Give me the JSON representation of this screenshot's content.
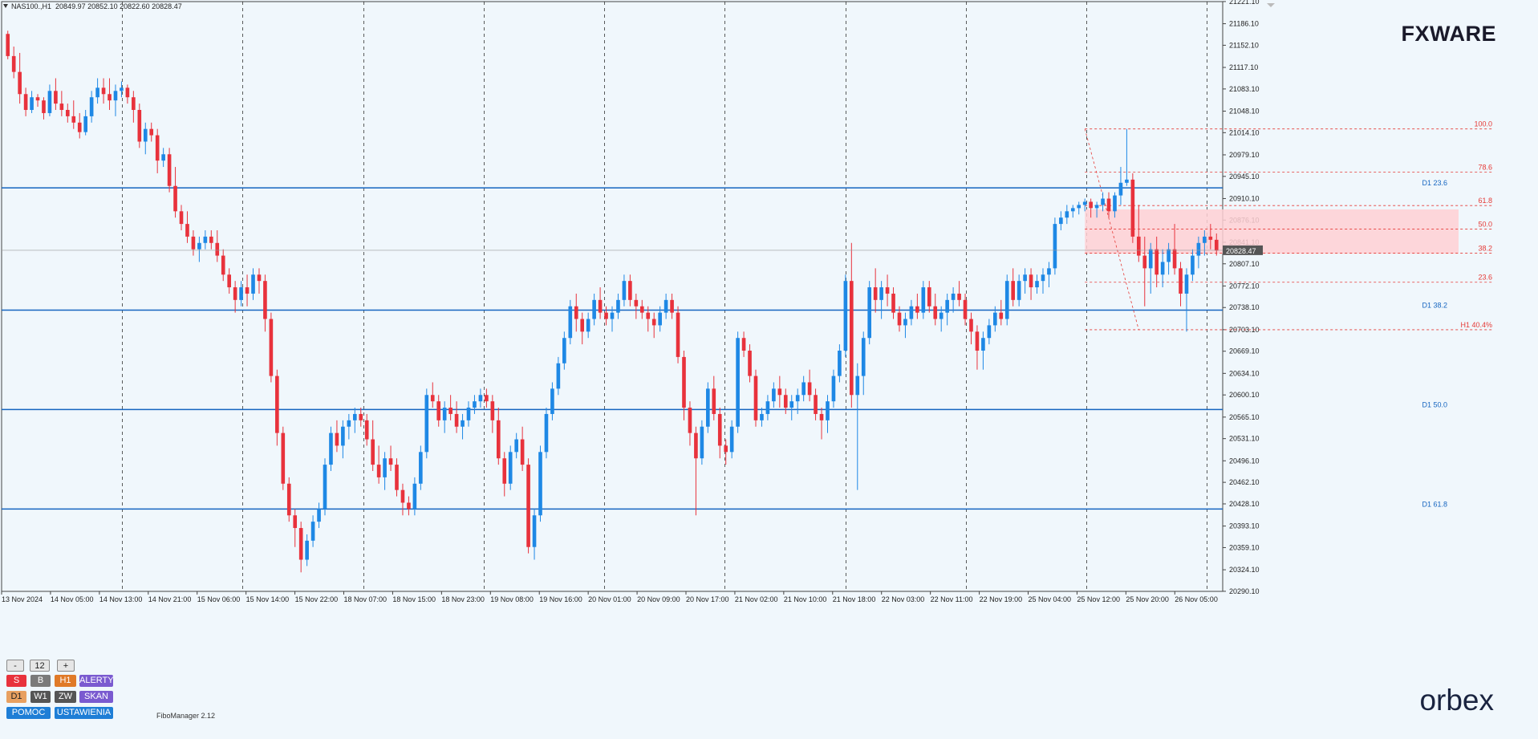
{
  "header": {
    "symbol": "NAS100.,H1",
    "ohlc": "20849.97 20852.10 20822.60 20828.47"
  },
  "brand": {
    "top_logo": "FXWARE",
    "bottom_logo": "orbex"
  },
  "indicator_label": "FiboManager 2.12",
  "panel": {
    "minus": "-",
    "value": "12",
    "plus": "+",
    "s": "S",
    "b": "B",
    "h1": "H1",
    "alerty": "ALERTY",
    "d1": "D1",
    "w1": "W1",
    "zw": "ZW",
    "skan": "SKAN",
    "pomoc": "POMOC",
    "ustawienia": "USTAWIENIA"
  },
  "colors": {
    "bull": "#1e88e5",
    "bear": "#e8323c",
    "support": "#1565c0",
    "fib": "#e53935",
    "zone": "#ffd0d4",
    "background": "#f0f7fc"
  },
  "chart_data": {
    "type": "candlestick",
    "ylim": [
      20290,
      21221
    ],
    "y_ticks": [
      "21221.10",
      "21186.10",
      "21152.10",
      "21117.10",
      "21083.10",
      "21048.10",
      "21014.10",
      "20979.10",
      "20945.10",
      "20910.10",
      "20876.10",
      "20841.10",
      "20807.10",
      "20772.10",
      "20738.10",
      "20703.10",
      "20669.10",
      "20634.10",
      "20600.10",
      "20565.10",
      "20531.10",
      "20496.10",
      "20462.10",
      "20428.10",
      "20393.10",
      "20359.10",
      "20324.10",
      "20290.10"
    ],
    "x_ticks": [
      "13 Nov 2024",
      "14 Nov 05:00",
      "14 Nov 13:00",
      "14 Nov 21:00",
      "15 Nov 06:00",
      "15 Nov 14:00",
      "15 Nov 22:00",
      "18 Nov 07:00",
      "18 Nov 15:00",
      "18 Nov 23:00",
      "19 Nov 08:00",
      "19 Nov 16:00",
      "20 Nov 01:00",
      "20 Nov 09:00",
      "20 Nov 17:00",
      "21 Nov 02:00",
      "21 Nov 10:00",
      "21 Nov 18:00",
      "22 Nov 03:00",
      "22 Nov 11:00",
      "22 Nov 19:00",
      "25 Nov 04:00",
      "25 Nov 12:00",
      "25 Nov 20:00",
      "26 Nov 05:00"
    ],
    "current_price": "20828.47",
    "support_lines": [
      {
        "label": "D1 23.6",
        "price": 20927
      },
      {
        "label": "D1 38.2",
        "price": 20734
      },
      {
        "label": "D1 50.0",
        "price": 20577
      },
      {
        "label": "D1 61.8",
        "price": 20420
      }
    ],
    "fib_levels": [
      {
        "label": "100.0",
        "price": 21020
      },
      {
        "label": "78.6",
        "price": 20952
      },
      {
        "label": "61.8",
        "price": 20899
      },
      {
        "label": "50.0",
        "price": 20862
      },
      {
        "label": "38.2",
        "price": 20824
      },
      {
        "label": "23.6",
        "price": 20778
      },
      {
        "label": "H1 40.4%",
        "price": 20703
      }
    ],
    "zone": {
      "top": 20893,
      "bottom": 20823
    },
    "candles": [
      [
        21170,
        21175,
        21130,
        21135
      ],
      [
        21135,
        21150,
        21100,
        21110
      ],
      [
        21110,
        21140,
        21060,
        21075
      ],
      [
        21075,
        21085,
        21040,
        21050
      ],
      [
        21050,
        21080,
        21045,
        21070
      ],
      [
        21070,
        21075,
        21055,
        21065
      ],
      [
        21065,
        21070,
        21035,
        21045
      ],
      [
        21045,
        21090,
        21040,
        21080
      ],
      [
        21080,
        21100,
        21050,
        21060
      ],
      [
        21060,
        21080,
        21040,
        21050
      ],
      [
        21050,
        21060,
        21030,
        21040
      ],
      [
        21040,
        21065,
        21020,
        21030
      ],
      [
        21030,
        21045,
        21005,
        21015
      ],
      [
        21015,
        21050,
        21010,
        21040
      ],
      [
        21040,
        21080,
        21030,
        21070
      ],
      [
        21070,
        21100,
        21060,
        21085
      ],
      [
        21085,
        21100,
        21060,
        21075
      ],
      [
        21075,
        21100,
        21050,
        21065
      ],
      [
        21065,
        21090,
        21040,
        21080
      ],
      [
        21080,
        21095,
        21070,
        21085
      ],
      [
        21085,
        21090,
        21060,
        21070
      ],
      [
        21070,
        21080,
        21030,
        21050
      ],
      [
        21050,
        21060,
        20990,
        21000
      ],
      [
        21000,
        21030,
        20980,
        21020
      ],
      [
        21020,
        21030,
        21000,
        21010
      ],
      [
        21010,
        21020,
        20950,
        20970
      ],
      [
        20970,
        20990,
        20960,
        20980
      ],
      [
        20980,
        20990,
        20920,
        20930
      ],
      [
        20930,
        20960,
        20880,
        20890
      ],
      [
        20890,
        20900,
        20860,
        20870
      ],
      [
        20870,
        20890,
        20840,
        20850
      ],
      [
        20850,
        20860,
        20820,
        20830
      ],
      [
        20830,
        20850,
        20810,
        20840
      ],
      [
        20840,
        20860,
        20830,
        20850
      ],
      [
        20850,
        20860,
        20830,
        20840
      ],
      [
        20840,
        20860,
        20810,
        20820
      ],
      [
        20820,
        20830,
        20780,
        20790
      ],
      [
        20790,
        20800,
        20760,
        20770
      ],
      [
        20770,
        20780,
        20730,
        20750
      ],
      [
        20750,
        20780,
        20740,
        20770
      ],
      [
        20770,
        20790,
        20740,
        20760
      ],
      [
        20760,
        20800,
        20750,
        20790
      ],
      [
        20790,
        20800,
        20760,
        20780
      ],
      [
        20780,
        20790,
        20700,
        20720
      ],
      [
        20720,
        20730,
        20620,
        20630
      ],
      [
        20630,
        20640,
        20520,
        20540
      ],
      [
        20540,
        20550,
        20450,
        20460
      ],
      [
        20460,
        20470,
        20400,
        20410
      ],
      [
        20410,
        20420,
        20360,
        20390
      ],
      [
        20390,
        20400,
        20320,
        20340
      ],
      [
        20340,
        20380,
        20330,
        20370
      ],
      [
        20370,
        20410,
        20360,
        20400
      ],
      [
        20400,
        20430,
        20390,
        20420
      ],
      [
        20420,
        20500,
        20410,
        20490
      ],
      [
        20490,
        20550,
        20480,
        20540
      ],
      [
        20540,
        20560,
        20510,
        20520
      ],
      [
        20520,
        20560,
        20500,
        20550
      ],
      [
        20550,
        20570,
        20530,
        20560
      ],
      [
        20560,
        20580,
        20540,
        20570
      ],
      [
        20570,
        20580,
        20550,
        20560
      ],
      [
        20560,
        20570,
        20520,
        20530
      ],
      [
        20530,
        20560,
        20480,
        20490
      ],
      [
        20490,
        20520,
        20460,
        20470
      ],
      [
        20470,
        20510,
        20450,
        20500
      ],
      [
        20500,
        20520,
        20480,
        20490
      ],
      [
        20490,
        20500,
        20440,
        20450
      ],
      [
        20450,
        20460,
        20410,
        20430
      ],
      [
        20430,
        20440,
        20410,
        20420
      ],
      [
        20420,
        20470,
        20410,
        20460
      ],
      [
        20460,
        20520,
        20450,
        20510
      ],
      [
        20510,
        20610,
        20500,
        20600
      ],
      [
        20600,
        20620,
        20580,
        20590
      ],
      [
        20590,
        20600,
        20550,
        20560
      ],
      [
        20560,
        20590,
        20540,
        20580
      ],
      [
        20580,
        20600,
        20560,
        20570
      ],
      [
        20570,
        20590,
        20540,
        20550
      ],
      [
        20550,
        20570,
        20530,
        20560
      ],
      [
        20560,
        20590,
        20550,
        20580
      ],
      [
        20580,
        20600,
        20570,
        20590
      ],
      [
        20590,
        20610,
        20580,
        20600
      ],
      [
        20600,
        20610,
        20580,
        20590
      ],
      [
        20590,
        20600,
        20540,
        20560
      ],
      [
        20560,
        20580,
        20490,
        20500
      ],
      [
        20500,
        20510,
        20440,
        20460
      ],
      [
        20460,
        20520,
        20450,
        20510
      ],
      [
        20510,
        20540,
        20500,
        20530
      ],
      [
        20530,
        20550,
        20480,
        20490
      ],
      [
        20490,
        20500,
        20350,
        20360
      ],
      [
        20360,
        20420,
        20340,
        20410
      ],
      [
        20410,
        20520,
        20400,
        20510
      ],
      [
        20510,
        20580,
        20500,
        20570
      ],
      [
        20570,
        20620,
        20560,
        20610
      ],
      [
        20610,
        20660,
        20600,
        20650
      ],
      [
        20650,
        20700,
        20640,
        20690
      ],
      [
        20690,
        20750,
        20680,
        20740
      ],
      [
        20740,
        20760,
        20700,
        20720
      ],
      [
        20720,
        20730,
        20680,
        20700
      ],
      [
        20700,
        20730,
        20690,
        20720
      ],
      [
        20720,
        20760,
        20710,
        20750
      ],
      [
        20750,
        20770,
        20720,
        20730
      ],
      [
        20730,
        20740,
        20710,
        20720
      ],
      [
        20720,
        20740,
        20700,
        20730
      ],
      [
        20730,
        20760,
        20720,
        20750
      ],
      [
        20750,
        20790,
        20740,
        20780
      ],
      [
        20780,
        20790,
        20740,
        20750
      ],
      [
        20750,
        20760,
        20720,
        20740
      ],
      [
        20740,
        20750,
        20720,
        20730
      ],
      [
        20730,
        20740,
        20700,
        20720
      ],
      [
        20720,
        20730,
        20690,
        20710
      ],
      [
        20710,
        20740,
        20700,
        20730
      ],
      [
        20730,
        20760,
        20720,
        20750
      ],
      [
        20750,
        20760,
        20720,
        20730
      ],
      [
        20730,
        20740,
        20650,
        20660
      ],
      [
        20660,
        20670,
        20560,
        20580
      ],
      [
        20580,
        20590,
        20520,
        20540
      ],
      [
        20540,
        20550,
        20410,
        20500
      ],
      [
        20500,
        20560,
        20490,
        20550
      ],
      [
        20550,
        20620,
        20540,
        20610
      ],
      [
        20610,
        20630,
        20560,
        20570
      ],
      [
        20570,
        20580,
        20500,
        20520
      ],
      [
        20520,
        20530,
        20490,
        20510
      ],
      [
        20510,
        20560,
        20500,
        20550
      ],
      [
        20550,
        20700,
        20540,
        20690
      ],
      [
        20690,
        20700,
        20660,
        20670
      ],
      [
        20670,
        20680,
        20620,
        20630
      ],
      [
        20630,
        20640,
        20550,
        20560
      ],
      [
        20560,
        20580,
        20550,
        20570
      ],
      [
        20570,
        20600,
        20560,
        20590
      ],
      [
        20590,
        20620,
        20580,
        20610
      ],
      [
        20610,
        20630,
        20580,
        20600
      ],
      [
        20600,
        20610,
        20570,
        20580
      ],
      [
        20580,
        20600,
        20560,
        20590
      ],
      [
        20590,
        20610,
        20570,
        20600
      ],
      [
        20600,
        20630,
        20590,
        20620
      ],
      [
        20620,
        20640,
        20590,
        20600
      ],
      [
        20600,
        20610,
        20560,
        20570
      ],
      [
        20570,
        20580,
        20530,
        20560
      ],
      [
        20560,
        20600,
        20540,
        20590
      ],
      [
        20590,
        20640,
        20580,
        20630
      ],
      [
        20630,
        20680,
        20620,
        20670
      ],
      [
        20670,
        20790,
        20660,
        20780
      ],
      [
        20780,
        20840,
        20580,
        20600
      ],
      [
        20600,
        20650,
        20450,
        20630
      ],
      [
        20630,
        20700,
        20600,
        20690
      ],
      [
        20690,
        20780,
        20680,
        20770
      ],
      [
        20770,
        20800,
        20730,
        20750
      ],
      [
        20750,
        20780,
        20720,
        20770
      ],
      [
        20770,
        20790,
        20740,
        20760
      ],
      [
        20760,
        20770,
        20720,
        20730
      ],
      [
        20730,
        20740,
        20700,
        20710
      ],
      [
        20710,
        20730,
        20690,
        20720
      ],
      [
        20720,
        20750,
        20710,
        20740
      ],
      [
        20740,
        20760,
        20720,
        20730
      ],
      [
        20730,
        20780,
        20720,
        20770
      ],
      [
        20770,
        20780,
        20730,
        20740
      ],
      [
        20740,
        20760,
        20710,
        20720
      ],
      [
        20720,
        20740,
        20700,
        20730
      ],
      [
        20730,
        20760,
        20710,
        20750
      ],
      [
        20750,
        20770,
        20730,
        20760
      ],
      [
        20760,
        20780,
        20740,
        20750
      ],
      [
        20750,
        20760,
        20710,
        20720
      ],
      [
        20720,
        20730,
        20680,
        20700
      ],
      [
        20700,
        20710,
        20640,
        20670
      ],
      [
        20670,
        20700,
        20640,
        20690
      ],
      [
        20690,
        20720,
        20680,
        20710
      ],
      [
        20710,
        20740,
        20700,
        20730
      ],
      [
        20730,
        20750,
        20710,
        20720
      ],
      [
        20720,
        20790,
        20710,
        20780
      ],
      [
        20780,
        20800,
        20740,
        20750
      ],
      [
        20750,
        20790,
        20740,
        20780
      ],
      [
        20780,
        20800,
        20760,
        20790
      ],
      [
        20790,
        20800,
        20750,
        20770
      ],
      [
        20770,
        20790,
        20760,
        20780
      ],
      [
        20780,
        20800,
        20760,
        20790
      ],
      [
        20790,
        20810,
        20770,
        20800
      ],
      [
        20800,
        20880,
        20790,
        20870
      ],
      [
        20870,
        20890,
        20860,
        20880
      ],
      [
        20880,
        20900,
        20870,
        20890
      ],
      [
        20890,
        20900,
        20880,
        20895
      ],
      [
        20895,
        20905,
        20885,
        20900
      ],
      [
        20900,
        20910,
        20890,
        20905
      ],
      [
        20905,
        20910,
        20880,
        20895
      ],
      [
        20895,
        20905,
        20880,
        20900
      ],
      [
        20900,
        20920,
        20890,
        20910
      ],
      [
        20910,
        20920,
        20880,
        20890
      ],
      [
        20890,
        20920,
        20880,
        20915
      ],
      [
        20915,
        20960,
        20900,
        20935
      ],
      [
        20935,
        21020,
        20930,
        20940
      ],
      [
        20940,
        20950,
        20840,
        20850
      ],
      [
        20850,
        20900,
        20810,
        20820
      ],
      [
        20820,
        20850,
        20740,
        20800
      ],
      [
        20800,
        20840,
        20760,
        20830
      ],
      [
        20830,
        20850,
        20770,
        20790
      ],
      [
        20790,
        20830,
        20770,
        20810
      ],
      [
        20810,
        20840,
        20790,
        20830
      ],
      [
        20830,
        20870,
        20790,
        20800
      ],
      [
        20800,
        20810,
        20740,
        20760
      ],
      [
        20760,
        20800,
        20700,
        20790
      ],
      [
        20790,
        20830,
        20780,
        20820
      ],
      [
        20820,
        20850,
        20800,
        20840
      ],
      [
        20840,
        20860,
        20820,
        20850
      ],
      [
        20850,
        20870,
        20830,
        20845
      ],
      [
        20845,
        20855,
        20820,
        20828
      ]
    ]
  }
}
